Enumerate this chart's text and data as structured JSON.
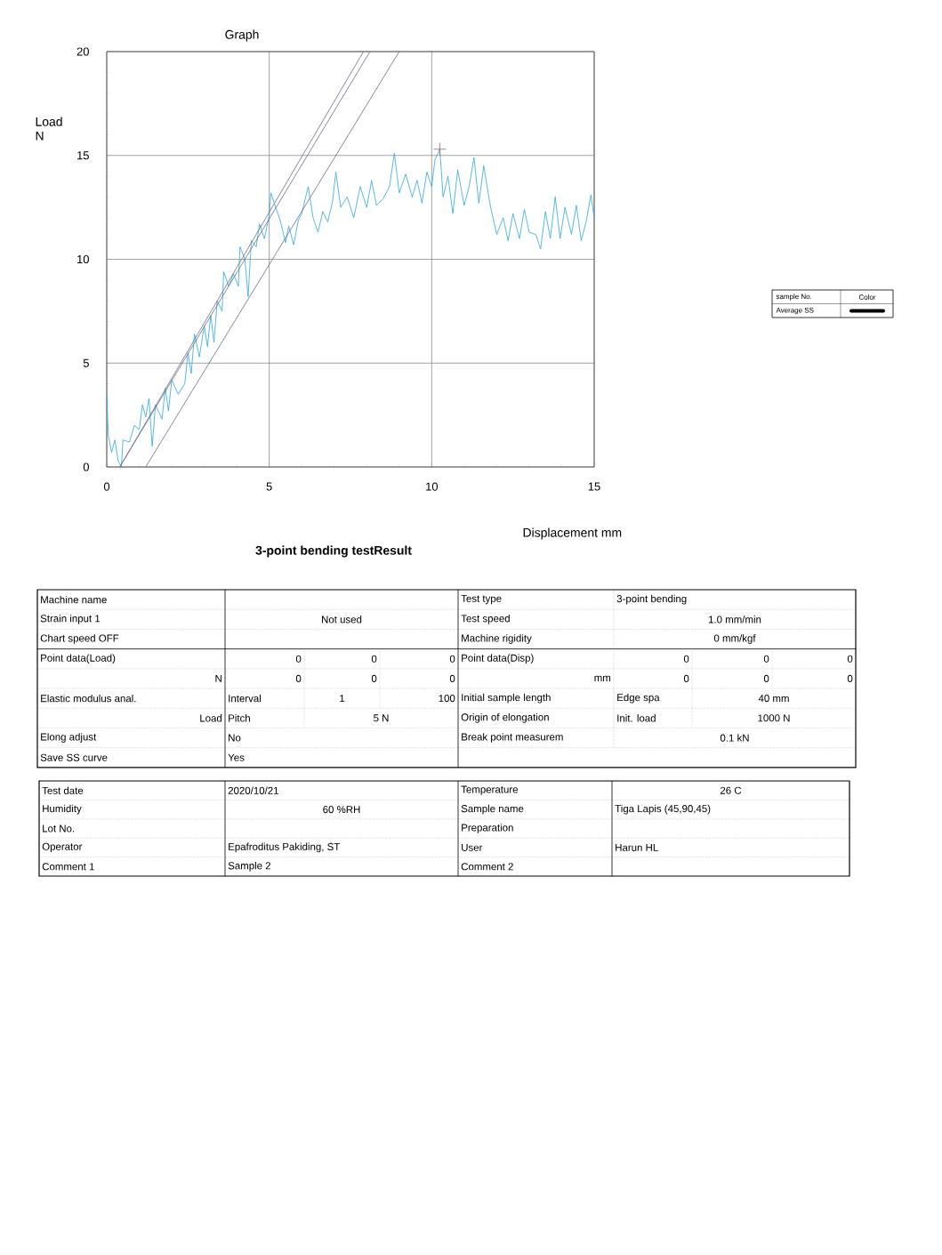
{
  "chart_data": {
    "type": "line",
    "title": "Graph",
    "xlabel": "Displacement mm",
    "ylabel": "Load N",
    "xlim": [
      0,
      15
    ],
    "ylim": [
      0,
      20
    ],
    "xticks": [
      0,
      5,
      10,
      15
    ],
    "yticks": [
      0,
      5,
      10,
      15,
      20
    ],
    "grid": true,
    "marker": "none",
    "series": [
      {
        "color": "#29a8e0",
        "x": [
          0,
          0.05,
          0.15,
          0.25,
          0.35,
          0.45,
          0.5,
          0.7,
          0.85,
          1.0,
          1.1,
          1.2,
          1.3,
          1.4,
          1.5,
          1.7,
          1.8,
          1.9,
          2.0,
          2.2,
          2.4,
          2.5,
          2.6,
          2.7,
          2.85,
          3.0,
          3.1,
          3.2,
          3.3,
          3.4,
          3.55,
          3.6,
          3.75,
          3.9,
          4.05,
          4.1,
          4.25,
          4.35,
          4.45,
          4.6,
          4.7,
          4.85,
          5.0,
          5.05,
          5.2,
          5.35,
          5.5,
          5.6,
          5.75,
          5.9,
          6.0,
          6.2,
          6.35,
          6.5,
          6.65,
          6.8,
          6.95,
          7.05,
          7.2,
          7.4,
          7.6,
          7.8,
          8.0,
          8.15,
          8.3,
          8.5,
          8.7,
          8.85,
          9.0,
          9.2,
          9.4,
          9.55,
          9.7,
          9.85,
          10.0,
          10.1,
          10.25,
          10.35,
          10.5,
          10.65,
          10.8,
          11.0,
          11.15,
          11.3,
          11.45,
          11.6,
          11.8,
          12.0,
          12.2,
          12.35,
          12.5,
          12.7,
          12.85,
          13.0,
          13.2,
          13.35,
          13.5,
          13.65,
          13.8,
          13.95,
          14.1,
          14.3,
          14.45,
          14.6,
          14.75,
          14.9,
          15.0
        ],
        "values": [
          3.5,
          1.5,
          0.7,
          1.3,
          0.3,
          0.0,
          1.3,
          1.2,
          2.0,
          1.8,
          3.0,
          2.4,
          3.3,
          1.0,
          3.0,
          2.3,
          3.8,
          2.7,
          4.2,
          3.5,
          4.0,
          5.5,
          4.5,
          6.4,
          5.3,
          6.8,
          5.8,
          7.3,
          6.0,
          8.0,
          7.5,
          9.4,
          8.7,
          9.3,
          8.7,
          10.6,
          10.0,
          8.2,
          10.9,
          10.6,
          11.7,
          11.0,
          12.1,
          13.2,
          12.5,
          11.8,
          10.8,
          11.6,
          10.7,
          11.9,
          12.2,
          13.5,
          12.0,
          11.3,
          12.3,
          11.8,
          12.8,
          14.2,
          12.5,
          13.0,
          12.0,
          13.5,
          12.5,
          13.8,
          12.6,
          12.9,
          13.5,
          15.1,
          13.2,
          14.1,
          13.0,
          13.8,
          12.7,
          14.2,
          13.5,
          14.8,
          15.3,
          13.0,
          14.0,
          12.2,
          14.3,
          12.6,
          13.5,
          14.9,
          12.7,
          14.5,
          12.6,
          11.2,
          12.0,
          10.9,
          12.2,
          11.0,
          12.4,
          11.3,
          11.2,
          10.5,
          12.3,
          11.0,
          13.0,
          11.0,
          12.5,
          11.2,
          12.6,
          10.9,
          11.8,
          13.1,
          12.0
        ]
      },
      {
        "color": "#6a6a8a",
        "x": [
          0.4,
          7.9
        ],
        "values": [
          0,
          20
        ]
      },
      {
        "color": "#6a6a8a",
        "x": [
          0.4,
          8.1
        ],
        "values": [
          0,
          20
        ]
      },
      {
        "color": "#6a6a8a",
        "x": [
          1.2,
          9.0
        ],
        "values": [
          0,
          20
        ]
      },
      {
        "type": "scatter",
        "marker": "cross",
        "color": "#a05a6a",
        "x": [
          10.25
        ],
        "values": [
          15.3
        ]
      }
    ],
    "annotations": [
      "3-point bending testResult",
      "sample No.",
      "Color",
      "Average SS",
      "Machine name",
      "Test type",
      "3-point bending",
      "Strain input 1",
      "Not used",
      "Test speed",
      "1.0 mm/min",
      "Chart speed OFF",
      "Machine rigidity",
      "0 mm/kgf",
      "Point data(Load)",
      "0",
      "0",
      "0",
      "Point data(Disp)",
      "0",
      "0",
      "0",
      "N",
      "0",
      "0",
      "0",
      "mm",
      "0",
      "0",
      "0",
      "Elastic modulus anal.",
      "Interval",
      "1",
      "100",
      "Initial sample length",
      "Edge spa",
      "40 mm",
      "Load",
      "Pitch",
      "5 N",
      "Origin of elongation",
      "Init. load",
      "1000 N",
      "Elong adjust",
      "No",
      "Break point measurem",
      "0.1 kN",
      "Save SS curve",
      "Yes",
      "Test date",
      "2020/10/21",
      "Temperature",
      "26 C",
      "Humidity",
      "60 %RH",
      "Sample name",
      "Tiga Lapis (45,90,45)",
      "Lot No.",
      "Preparation",
      "Operator",
      "Epafroditus Pakiding, ST",
      "User",
      "Harun HL",
      "Comment 1",
      "Sample 2",
      "Comment 2"
    ]
  }
}
